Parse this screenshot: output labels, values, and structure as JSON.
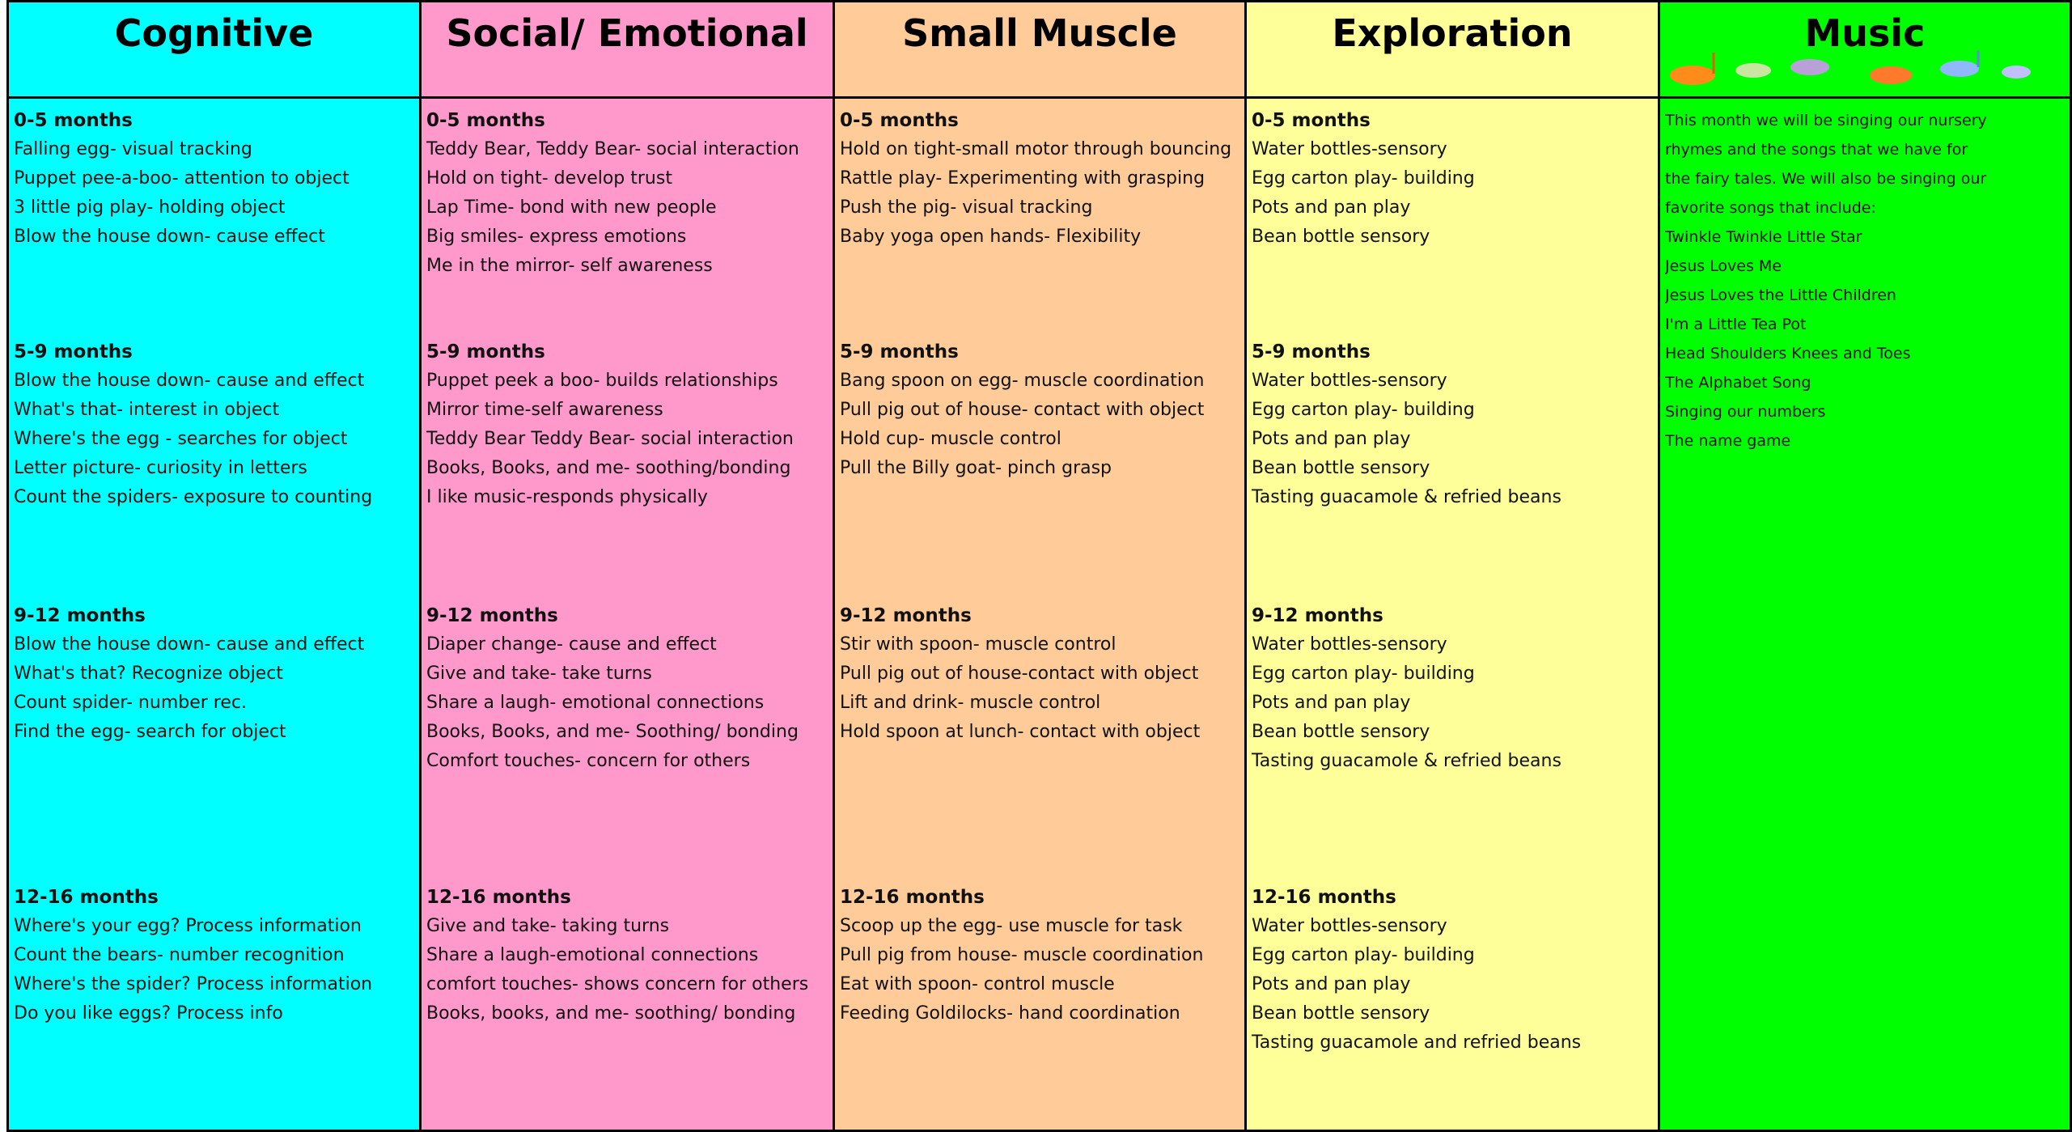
{
  "columns": [
    {
      "title": "Cognitive",
      "groups": [
        {
          "heading": "0-5 months",
          "items": [
            "Falling egg- visual tracking",
            "Puppet pee-a-boo- attention to object",
            "3 little pig play- holding object",
            "Blow the house down- cause effect"
          ]
        },
        {
          "heading": "5-9 months",
          "items": [
            "Blow the house down- cause and effect",
            "What's that- interest in object",
            "Where's the egg - searches for object",
            "Letter picture- curiosity in letters",
            "Count the spiders- exposure to counting"
          ]
        },
        {
          "heading": "9-12 months",
          "items": [
            "Blow the house down- cause and effect",
            "What's that? Recognize object",
            "Count spider- number rec.",
            "Find the egg- search for object"
          ]
        },
        {
          "heading": "12-16 months",
          "items": [
            "Where's your egg? Process information",
            "Count the bears- number recognition",
            "Where's the spider? Process information",
            "Do you like eggs? Process info"
          ]
        }
      ]
    },
    {
      "title": "Social/ Emotional",
      "groups": [
        {
          "heading": "0-5 months",
          "items": [
            "Teddy Bear, Teddy Bear- social interaction",
            "Hold on tight- develop trust",
            "Lap Time- bond with new people",
            "Big smiles- express emotions",
            "Me in the mirror- self awareness"
          ]
        },
        {
          "heading": "5-9 months",
          "items": [
            "Puppet peek a boo- builds relationships",
            "Mirror time-self awareness",
            "Teddy Bear Teddy Bear- social interaction",
            "Books, Books, and me- soothing/bonding",
            "I like music-responds physically"
          ]
        },
        {
          "heading": "9-12 months",
          "items": [
            "Diaper change- cause and effect",
            "Give and take- take turns",
            "Share a laugh- emotional connections",
            "Books, Books, and me- Soothing/ bonding",
            "Comfort touches- concern for others"
          ]
        },
        {
          "heading": "12-16 months",
          "items": [
            "Give and take- taking turns",
            "Share a laugh-emotional connections",
            "comfort touches- shows concern for others",
            "Books, books, and me- soothing/ bonding"
          ]
        }
      ]
    },
    {
      "title": "Small Muscle",
      "groups": [
        {
          "heading": "0-5 months",
          "items": [
            "Hold on tight-small motor through bouncing",
            "Rattle play- Experimenting with grasping",
            "Push the pig- visual tracking",
            "Baby yoga open hands- Flexibility"
          ]
        },
        {
          "heading": "5-9 months",
          "items": [
            "Bang spoon on egg- muscle coordination",
            "Pull pig out of house- contact with object",
            "Hold cup- muscle control",
            "Pull the Billy goat- pinch grasp"
          ]
        },
        {
          "heading": "9-12 months",
          "items": [
            "Stir with spoon- muscle control",
            "Pull pig out of house-contact with object",
            "Lift and drink- muscle control",
            "Hold spoon at lunch- contact with object"
          ]
        },
        {
          "heading": "12-16 months",
          "items": [
            "Scoop up the egg- use muscle for task",
            "Pull pig from house- muscle coordination",
            "Eat with spoon- control muscle",
            "Feeding Goldilocks- hand coordination"
          ]
        }
      ]
    },
    {
      "title": "Exploration",
      "groups": [
        {
          "heading": "0-5 months",
          "items": [
            "Water bottles-sensory",
            "Egg carton play- building",
            "Pots and pan play",
            "Bean bottle sensory"
          ]
        },
        {
          "heading": "5-9 months",
          "items": [
            "Water bottles-sensory",
            "Egg carton play- building",
            "Pots and pan play",
            "Bean bottle sensory",
            "Tasting guacamole & refried beans"
          ]
        },
        {
          "heading": "9-12 months",
          "items": [
            "Water bottles-sensory",
            "Egg carton play- building",
            "Pots and pan play",
            "Bean bottle sensory",
            "Tasting guacamole & refried beans"
          ]
        },
        {
          "heading": "12-16 months",
          "items": [
            "Water bottles-sensory",
            "Egg carton play- building",
            "Pots and pan play",
            "Bean bottle sensory",
            "Tasting guacamole and refried beans"
          ]
        }
      ]
    },
    {
      "title": "Music",
      "lines": [
        "This month we will be singing our nursery",
        "rhymes and the songs that we have for",
        "the fairy tales.  We will  also be singing our",
        "favorite songs that include:",
        "Twinkle Twinkle Little Star",
        "Jesus Loves Me",
        "Jesus Loves the Little Children",
        "I'm a Little Tea Pot",
        "Head Shoulders Knees and Toes",
        "The Alphabet Song",
        "Singing our numbers",
        "The name game"
      ]
    }
  ]
}
